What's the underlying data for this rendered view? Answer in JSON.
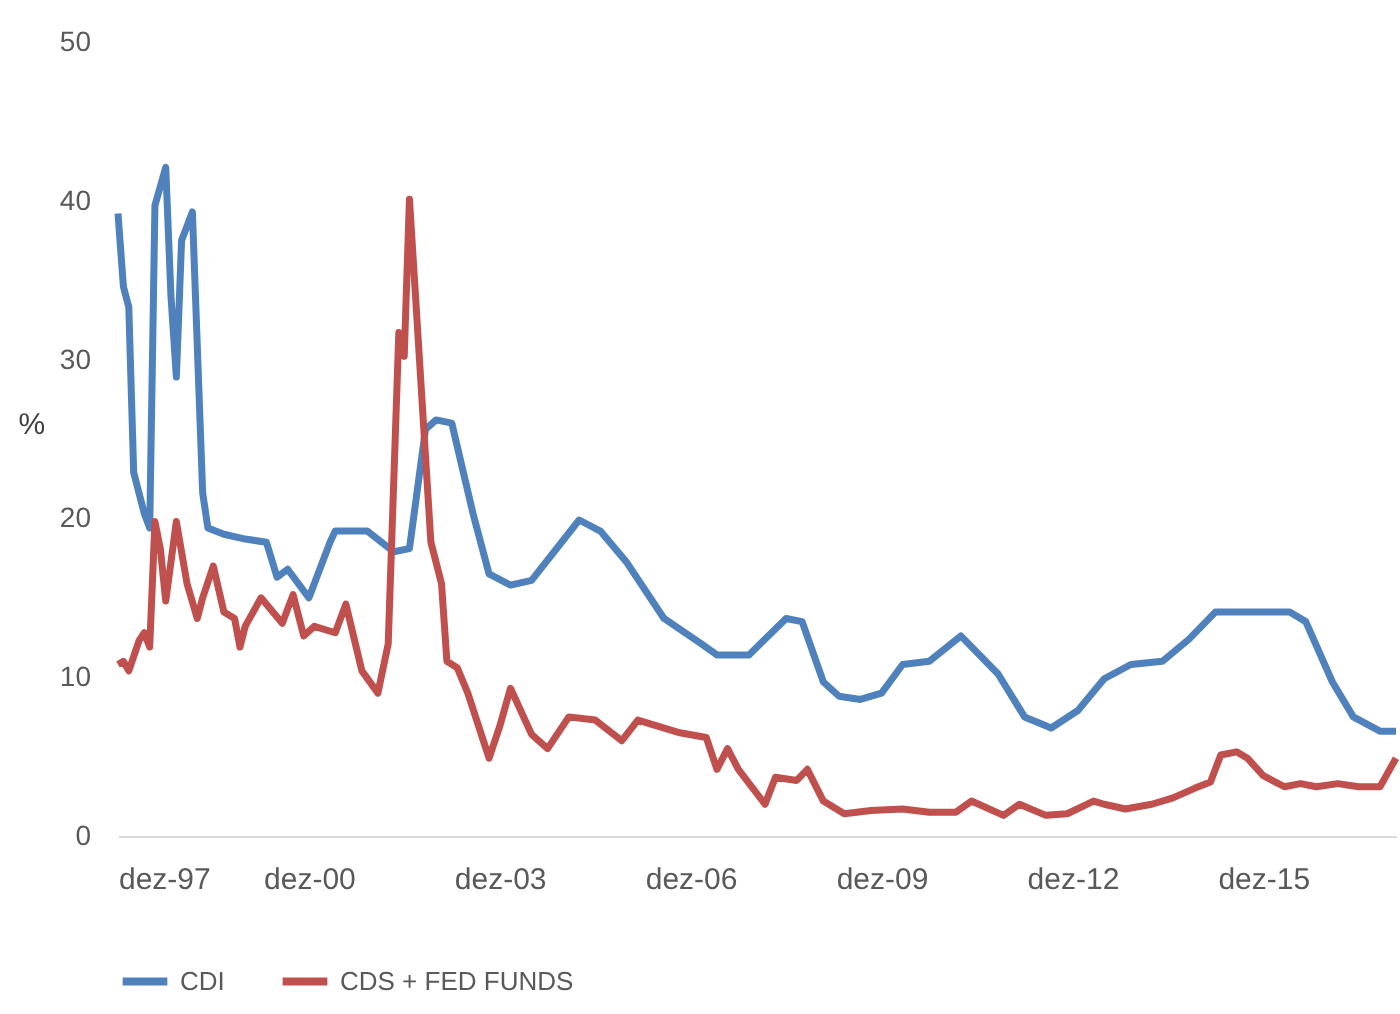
{
  "chart_data": {
    "type": "line",
    "ylabel": "%",
    "xlim": [
      "1997-12",
      "2018-01"
    ],
    "xticks": [
      {
        "value": "1997-12",
        "label": "dez-97"
      },
      {
        "value": "2000-12",
        "label": "dez-00"
      },
      {
        "value": "2003-12",
        "label": "dez-03"
      },
      {
        "value": "2006-12",
        "label": "dez-06"
      },
      {
        "value": "2009-12",
        "label": "dez-09"
      },
      {
        "value": "2012-12",
        "label": "dez-12"
      },
      {
        "value": "2015-12",
        "label": "dez-15"
      }
    ],
    "ylim": [
      0,
      50
    ],
    "yticks": [
      0,
      10,
      20,
      30,
      40,
      50
    ],
    "grid": false,
    "legend": "bottom",
    "marker": "none",
    "line_style": "solid",
    "series": [
      {
        "name": "CDI",
        "color": "#4f81bd",
        "x": [
          "1997-12",
          "1998-01",
          "1998-02",
          "1998-03",
          "1998-05",
          "1998-06",
          "1998-07",
          "1998-09",
          "1998-10",
          "1998-11",
          "1998-12",
          "1999-02",
          "1999-04",
          "1999-05",
          "1999-08",
          "1999-12",
          "2000-04",
          "2000-06",
          "2000-08",
          "2000-12",
          "2001-04",
          "2001-05",
          "2001-11",
          "2002-04",
          "2002-07",
          "2002-10",
          "2002-12",
          "2003-03",
          "2003-07",
          "2003-10",
          "2004-02",
          "2004-06",
          "2005-03",
          "2005-07",
          "2005-12",
          "2006-07",
          "2007-02",
          "2007-05",
          "2007-11",
          "2008-06",
          "2008-09",
          "2009-01",
          "2009-04",
          "2009-08",
          "2009-12",
          "2010-04",
          "2010-09",
          "2011-03",
          "2011-10",
          "2012-03",
          "2012-08",
          "2013-01",
          "2013-06",
          "2013-11",
          "2014-05",
          "2014-10",
          "2015-03",
          "2016-05",
          "2016-08",
          "2017-01",
          "2017-05",
          "2017-10",
          "2018-01"
        ],
        "values": [
          39.2,
          34.6,
          33.3,
          22.9,
          20.3,
          19.4,
          39.7,
          42.1,
          34,
          28.9,
          37.5,
          39.3,
          21.6,
          19.4,
          19.0,
          18.7,
          18.5,
          16.3,
          16.8,
          15.0,
          18.5,
          19.2,
          19.2,
          17.9,
          18.1,
          25.6,
          26.2,
          26.0,
          20.3,
          16.5,
          15.8,
          16.1,
          19.9,
          19.2,
          17.2,
          13.7,
          12.1,
          11.4,
          11.4,
          13.7,
          13.5,
          9.7,
          8.8,
          8.6,
          9.0,
          10.8,
          11.0,
          12.6,
          10.2,
          7.5,
          6.8,
          7.9,
          9.9,
          10.8,
          11.0,
          12.4,
          14.1,
          14.1,
          13.5,
          9.7,
          7.5,
          6.6,
          6.6
        ]
      },
      {
        "name": "CDS + FED FUNDS",
        "color": "#c0504d",
        "x": [
          "1997-12",
          "1998-01",
          "1998-02",
          "1998-04",
          "1998-05",
          "1998-06",
          "1998-07",
          "1998-08",
          "1998-09",
          "1998-11",
          "1999-01",
          "1999-03",
          "1999-04",
          "1999-06",
          "1999-08",
          "1999-10",
          "1999-11",
          "1999-12",
          "2000-03",
          "2000-07",
          "2000-09",
          "2000-11",
          "2001-01",
          "2001-05",
          "2001-07",
          "2001-10",
          "2002-01",
          "2002-03",
          "2002-05",
          "2002-06",
          "2002-07",
          "2002-11",
          "2003-01",
          "2003-02",
          "2003-04",
          "2003-06",
          "2003-10",
          "2003-12",
          "2004-02",
          "2004-06",
          "2004-09",
          "2005-01",
          "2005-06",
          "2005-11",
          "2006-02",
          "2006-10",
          "2007-03",
          "2007-05",
          "2007-07",
          "2007-09",
          "2008-02",
          "2008-04",
          "2008-08",
          "2008-10",
          "2009-01",
          "2009-05",
          "2009-10",
          "2010-04",
          "2010-09",
          "2011-02",
          "2011-05",
          "2011-11",
          "2012-02",
          "2012-07",
          "2012-11",
          "2013-04",
          "2013-06",
          "2013-10",
          "2014-03",
          "2014-07",
          "2014-11",
          "2015-02",
          "2015-04",
          "2015-07",
          "2015-09",
          "2015-12",
          "2016-04",
          "2016-07",
          "2016-10",
          "2017-02",
          "2017-06",
          "2017-10",
          "2018-01"
        ],
        "values": [
          10.8,
          11.0,
          10.4,
          12.3,
          12.8,
          11.9,
          19.8,
          18.1,
          14.8,
          19.8,
          15.9,
          13.7,
          15.0,
          17.0,
          14.1,
          13.7,
          11.9,
          13.2,
          15.0,
          13.4,
          15.2,
          12.6,
          13.2,
          12.8,
          14.6,
          10.4,
          9.0,
          12.1,
          31.7,
          30.2,
          40.1,
          18.5,
          15.9,
          11.0,
          10.6,
          9.0,
          4.9,
          6.9,
          9.3,
          6.4,
          5.5,
          7.5,
          7.3,
          6.0,
          7.3,
          6.5,
          6.2,
          4.2,
          5.5,
          4.2,
          2.0,
          3.7,
          3.5,
          4.2,
          2.2,
          1.4,
          1.6,
          1.7,
          1.5,
          1.5,
          2.2,
          1.3,
          2.0,
          1.3,
          1.4,
          2.2,
          2.0,
          1.7,
          2.0,
          2.4,
          3.0,
          3.4,
          5.1,
          5.3,
          4.9,
          3.8,
          3.1,
          3.3,
          3.1,
          3.3,
          3.1,
          3.1,
          4.9
        ]
      }
    ]
  }
}
